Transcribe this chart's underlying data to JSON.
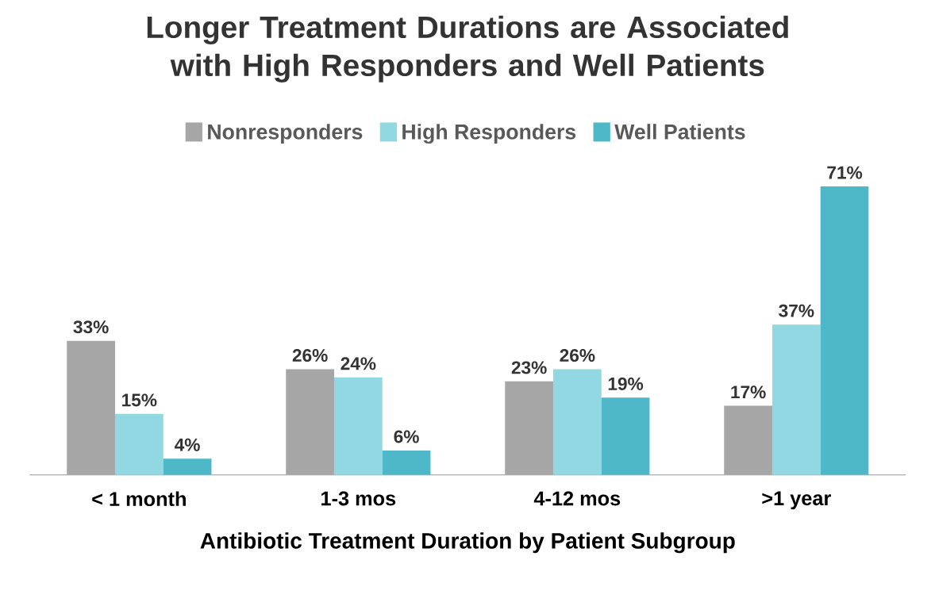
{
  "chart_data": {
    "type": "bar",
    "title": "Longer Treatment Durations are Associated with High Responders and Well Patients",
    "xlabel": "Antibiotic Treatment Duration by Patient Subgroup",
    "categories": [
      "< 1 month",
      "1-3 mos",
      "4-12 mos",
      ">1 year"
    ],
    "series": [
      {
        "name": "Nonresponders",
        "color": "#a6a6a6",
        "values": [
          33,
          26,
          23,
          17
        ],
        "value_labels": [
          "33%",
          "26%",
          "23%",
          "17%"
        ]
      },
      {
        "name": "High Responders",
        "color": "#92d8e3",
        "values": [
          15,
          24,
          26,
          37
        ],
        "value_labels": [
          "15%",
          "24%",
          "26%",
          "37%"
        ]
      },
      {
        "name": "Well Patients",
        "color": "#4fb8c8",
        "values": [
          4,
          6,
          19,
          71
        ],
        "value_labels": [
          "4%",
          "6%",
          "19%",
          "71%"
        ]
      }
    ],
    "legend": "top"
  }
}
